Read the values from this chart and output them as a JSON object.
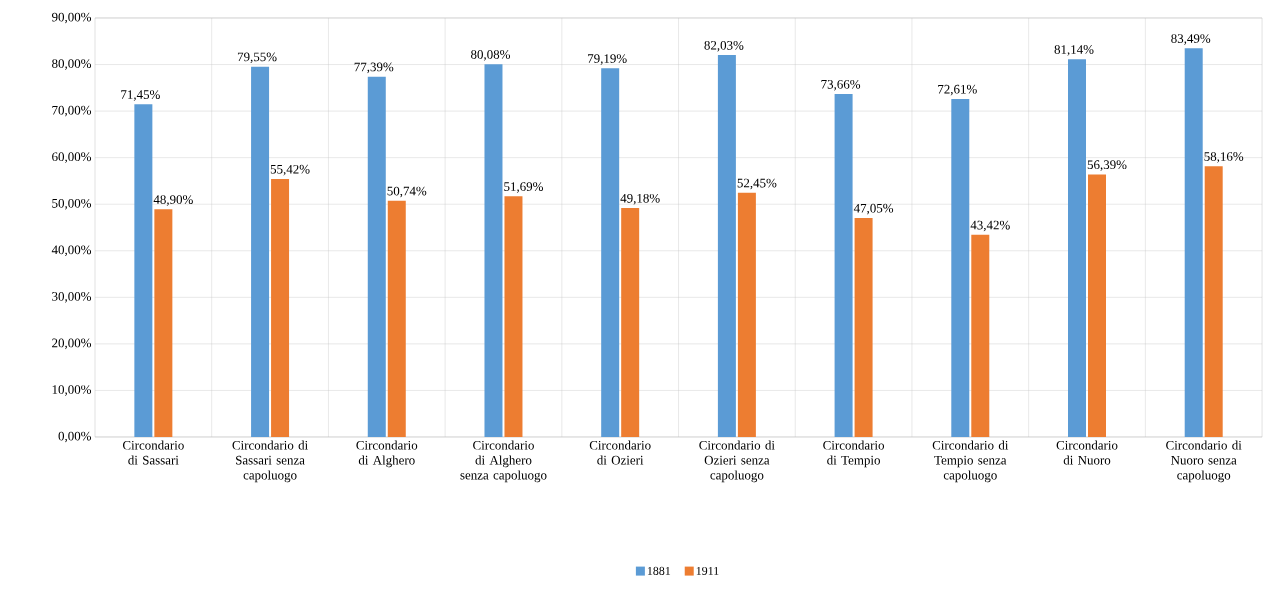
{
  "chart_data": {
    "type": "bar",
    "categories": [
      "Circondario di Sassari",
      "Circondario di Sassari senza capoluogo",
      "Circondario di Alghero",
      "Circondario di Alghero senza capoluogo",
      "Circondario di Ozieri",
      "Circondario di Ozieri senza capoluogo",
      "Circondario di Tempio",
      "Circondario di Tempio senza capoluogo",
      "Circondario di Nuoro",
      "Circondario di Nuoro senza capoluogo"
    ],
    "series": [
      {
        "name": "1881",
        "color": "#5b9bd5",
        "values": [
          71.45,
          79.55,
          77.39,
          80.08,
          79.19,
          82.03,
          73.66,
          72.61,
          81.14,
          83.49
        ],
        "value_labels": [
          "71,45%",
          "79,55%",
          "77,39%",
          "80,08%",
          "79,19%",
          "82,03%",
          "73,66%",
          "72,61%",
          "81,14%",
          "83,49%"
        ]
      },
      {
        "name": "1911",
        "color": "#ed7d31",
        "values": [
          48.9,
          55.42,
          50.74,
          51.69,
          49.18,
          52.45,
          47.05,
          43.42,
          56.39,
          58.16
        ],
        "value_labels": [
          "48,90%",
          "55,42%",
          "50,74%",
          "51,69%",
          "49,18%",
          "52,45%",
          "47,05%",
          "43,42%",
          "56,39%",
          "58,16%"
        ]
      }
    ],
    "ylim": [
      0,
      90
    ],
    "yticks": [
      {
        "value": 0,
        "label": "0,00%"
      },
      {
        "value": 10,
        "label": "10,00%"
      },
      {
        "value": 20,
        "label": "20,00%"
      },
      {
        "value": 30,
        "label": "30,00%"
      },
      {
        "value": 40,
        "label": "40,00%"
      },
      {
        "value": 50,
        "label": "50,00%"
      },
      {
        "value": 60,
        "label": "60,00%"
      },
      {
        "value": 70,
        "label": "70,00%"
      },
      {
        "value": 80,
        "label": "80,00%"
      },
      {
        "value": 90,
        "label": "90,00%"
      }
    ],
    "grid": true,
    "legend": "bottom"
  }
}
